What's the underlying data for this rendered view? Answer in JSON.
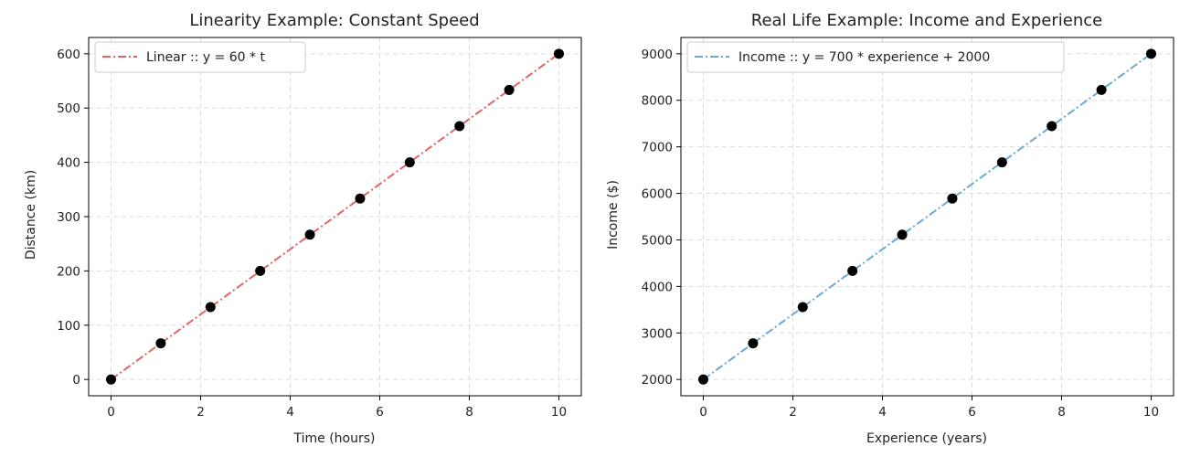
{
  "chart_data": [
    {
      "type": "line",
      "title": "Linearity Example: Constant Speed",
      "xlabel": "Time (hours)",
      "ylabel": "Distance (km)",
      "xlim": [
        -0.5,
        10.5
      ],
      "ylim": [
        -30,
        630
      ],
      "xticks": [
        0,
        2,
        4,
        6,
        8,
        10
      ],
      "yticks": [
        0,
        100,
        200,
        300,
        400,
        500,
        600
      ],
      "grid": true,
      "legend_position": "top-left",
      "series": [
        {
          "name": "Linear :: y = 60 * t",
          "style": "dash-dot line",
          "color": "#e06666",
          "x": [
            0,
            10
          ],
          "y": [
            0,
            600
          ]
        }
      ],
      "points": {
        "color": "#000000",
        "x": [
          0,
          1.11,
          2.22,
          3.33,
          4.44,
          5.56,
          6.67,
          7.78,
          8.89,
          10
        ],
        "y": [
          0,
          66.7,
          133.3,
          200,
          266.7,
          333.3,
          400,
          466.7,
          533.3,
          600
        ]
      }
    },
    {
      "type": "line",
      "title": "Real Life Example: Income and Experience",
      "xlabel": "Experience (years)",
      "ylabel": "Income ($)",
      "xlim": [
        -0.5,
        10.5
      ],
      "ylim": [
        1650,
        9350
      ],
      "xticks": [
        0,
        2,
        4,
        6,
        8,
        10
      ],
      "yticks": [
        2000,
        3000,
        4000,
        5000,
        6000,
        7000,
        8000,
        9000
      ],
      "grid": true,
      "legend_position": "top-left",
      "series": [
        {
          "name": "Income :: y = 700 * experience + 2000",
          "style": "dash-dot line",
          "color": "#6fa8d0",
          "x": [
            0,
            10
          ],
          "y": [
            2000,
            9000
          ]
        }
      ],
      "points": {
        "color": "#000000",
        "x": [
          0,
          1.11,
          2.22,
          3.33,
          4.44,
          5.56,
          6.67,
          7.78,
          8.89,
          10
        ],
        "y": [
          2000,
          2777.8,
          3555.6,
          4333.3,
          5111.1,
          5888.9,
          6666.7,
          7444.4,
          8222.2,
          9000
        ]
      }
    }
  ]
}
